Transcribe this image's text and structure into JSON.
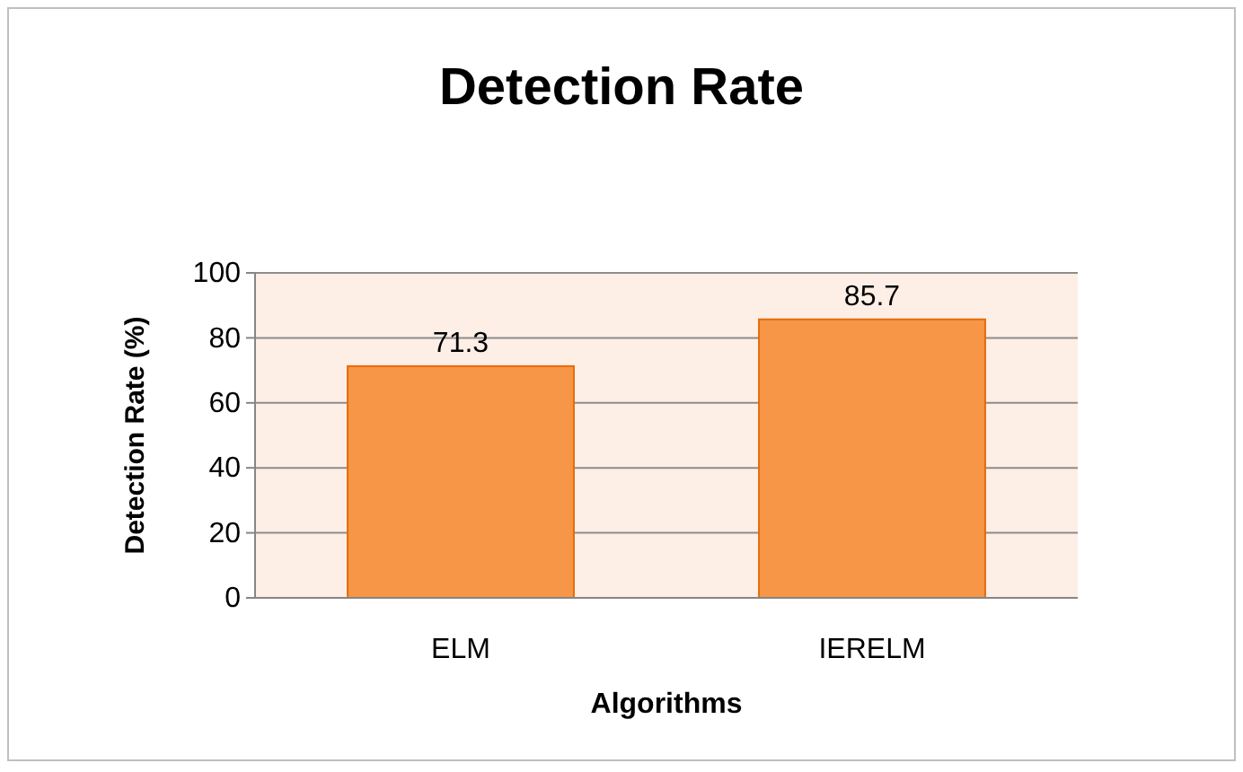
{
  "chart_data": {
    "type": "bar",
    "title": "Detection Rate",
    "xlabel": "Algorithms",
    "ylabel": "Detection Rate (%)",
    "categories": [
      "ELM",
      "IERELM"
    ],
    "values": [
      71.3,
      85.7
    ],
    "color": "#f79646",
    "ylim": [
      0,
      100
    ],
    "yticks": [
      0,
      20,
      40,
      60,
      80,
      100
    ],
    "grid": "y",
    "data_labels": true
  }
}
